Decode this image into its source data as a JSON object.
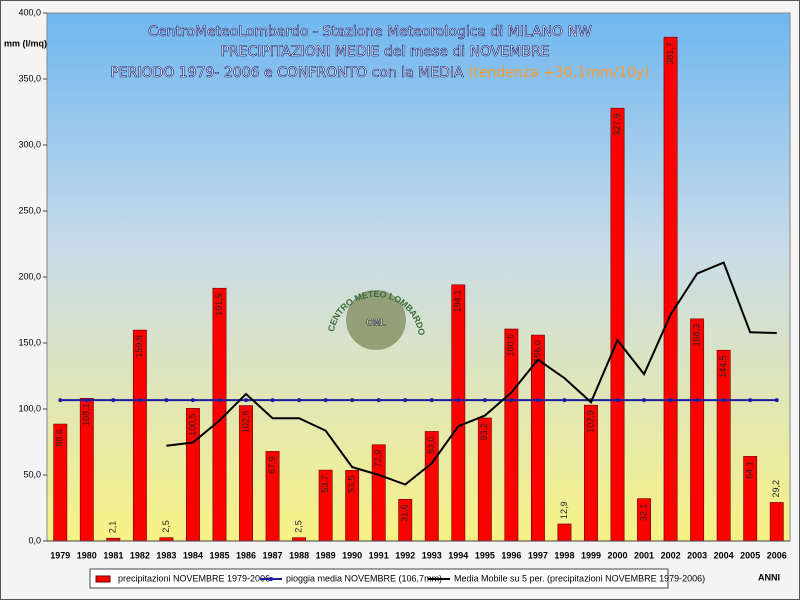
{
  "chart_data": {
    "type": "bar",
    "title_lines": [
      "CentroMeteoLombardo - Stazione Meteorologica di MILANO NW",
      "PRECIPITAZIONI MEDIE del mese di NOVEMBRE",
      "PERIODO 1979- 2006 e CONFRONTO con la MEDIA"
    ],
    "trend_note": "(tendenza +30,1mm/10y)",
    "y_label": "mm (l/mq)",
    "x_label": "ANNI",
    "logo": {
      "ring": "CENTRO METEO LOMBARDO",
      "center": "CML"
    },
    "categories": [
      "1979",
      "1980",
      "1981",
      "1982",
      "1983",
      "1984",
      "1985",
      "1986",
      "1987",
      "1988",
      "1989",
      "1990",
      "1991",
      "1992",
      "1993",
      "1994",
      "1995",
      "1996",
      "1997",
      "1998",
      "1999",
      "2000",
      "2001",
      "2002",
      "2003",
      "2004",
      "2005",
      "2006"
    ],
    "series": [
      {
        "name": "precipitazioni NOVEMBRE 1979-2006",
        "type": "bar",
        "color": "#ff0000",
        "values": [
          88.6,
          108.1,
          2.1,
          159.8,
          2.5,
          100.5,
          191.5,
          102.6,
          67.9,
          2.5,
          53.7,
          53.5,
          72.9,
          31.6,
          83.0,
          194.1,
          93.2,
          160.6,
          156.0,
          12.9,
          102.9,
          327.9,
          32.1,
          381.7,
          168.3,
          144.5,
          64.1,
          29.2
        ],
        "value_labels": [
          "88,6",
          "108,1",
          "2,1",
          "159,8",
          "2,5",
          "100,5",
          "191,5",
          "102,6",
          "67,9",
          "2,5",
          "53,7",
          "53,5",
          "72,9",
          "31,6",
          "83,0",
          "194,1",
          "93,2",
          "160,6",
          "156,0",
          "12,9",
          "102,9",
          "327,9",
          "32,1",
          "381,7",
          "168,3",
          "144,5",
          "64,1",
          "29,2"
        ]
      },
      {
        "name": "pioggia media NOVEMBRE (106,7mm)",
        "type": "line",
        "color": "#1c1ca0",
        "markers": true,
        "values": [
          106.7,
          106.7,
          106.7,
          106.7,
          106.7,
          106.7,
          106.7,
          106.7,
          106.7,
          106.7,
          106.7,
          106.7,
          106.7,
          106.7,
          106.7,
          106.7,
          106.7,
          106.7,
          106.7,
          106.7,
          106.7,
          106.7,
          106.7,
          106.7,
          106.7,
          106.7,
          106.7,
          106.7
        ]
      },
      {
        "name": "Media Mobile su 5 per. (precipitazioni NOVEMBRE 1979-2006)",
        "type": "line",
        "color": "#000000",
        "markers": false,
        "values": [
          null,
          null,
          null,
          null,
          72.2,
          74.6,
          91.3,
          111.4,
          93.0,
          93.0,
          83.6,
          56.0,
          50.1,
          42.8,
          58.9,
          87.0,
          95.0,
          112.5,
          137.4,
          123.4,
          105.1,
          152.1,
          126.4,
          171.5,
          202.6,
          210.9,
          158.1,
          157.6
        ]
      }
    ],
    "ylim": [
      0,
      400
    ],
    "yticks": [
      {
        "value": 0,
        "label": "0,0"
      },
      {
        "value": 50,
        "label": "50,0"
      },
      {
        "value": 100,
        "label": "100,0"
      },
      {
        "value": 150,
        "label": "150,0"
      },
      {
        "value": 200,
        "label": "200,0"
      },
      {
        "value": 250,
        "label": "250,0"
      },
      {
        "value": 300,
        "label": "300,0"
      },
      {
        "value": 350,
        "label": "350,0"
      },
      {
        "value": 400,
        "label": "400,0"
      }
    ]
  }
}
